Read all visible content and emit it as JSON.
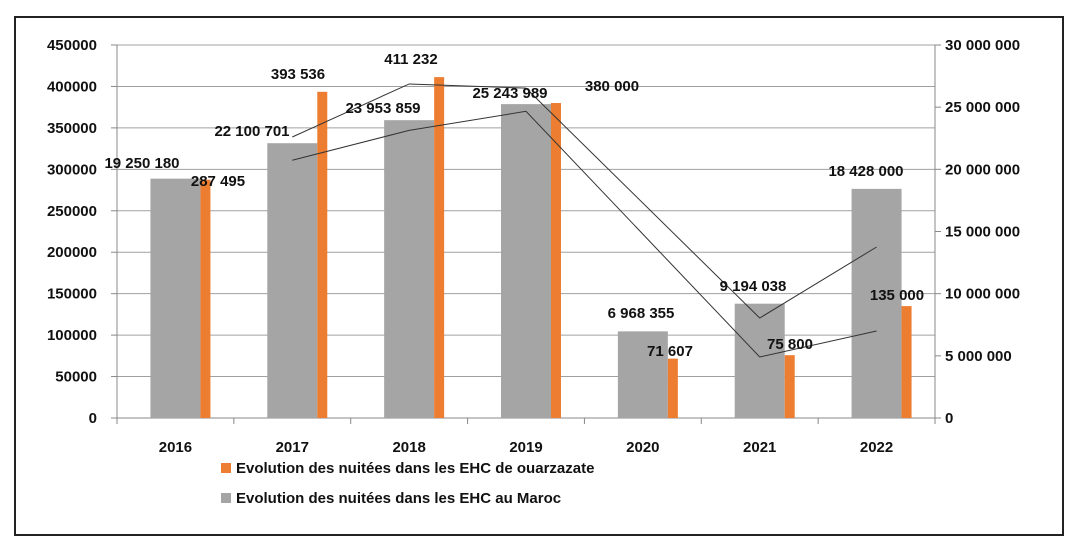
{
  "chart_data": {
    "type": "bar",
    "title": "",
    "xlabel": "",
    "ylabel": "",
    "categories": [
      "2016",
      "2017",
      "2018",
      "2019",
      "2020",
      "2021",
      "2022"
    ],
    "series": [
      {
        "name": "Evolution des nuitées dans les EHC au Maroc",
        "axis": "right",
        "color": "#a5a5a5",
        "values": [
          19250180,
          22100701,
          23953859,
          25243989,
          6968355,
          9194038,
          18428000
        ],
        "labels": [
          "19 250 180",
          "22 100 701",
          "23 953 859",
          "25 243 989",
          "6 968 355",
          "9 194 038",
          "18 428 000"
        ]
      },
      {
        "name": "Evolution des nuitées dans les EHC de ouarzazate",
        "axis": "left",
        "color": "#ed7d31",
        "values": [
          287495,
          393536,
          411232,
          380000,
          71607,
          75800,
          135000
        ],
        "labels": [
          "287 495",
          "393 536",
          "411 232",
          "380 000",
          "71 607",
          "75 800",
          "135 000"
        ]
      }
    ],
    "lines": [
      {
        "name": "line-a",
        "x": [
          "2017",
          "2018",
          "2019",
          "2021",
          "2022"
        ],
        "values": [
          339000,
          403000,
          398000,
          120600,
          206300
        ]
      },
      {
        "name": "line-b",
        "x": [
          "2017",
          "2018",
          "2019",
          "2021",
          "2022"
        ],
        "values": [
          311000,
          347000,
          370000,
          73600,
          105000
        ]
      }
    ],
    "left_axis": {
      "ylim": [
        0,
        450000
      ],
      "ticks": [
        "0",
        "50000",
        "100000",
        "150000",
        "200000",
        "250000",
        "300000",
        "350000",
        "400000",
        "450000"
      ]
    },
    "right_axis": {
      "ylim": [
        0,
        30000000
      ],
      "ticks": [
        "0",
        "5 000 000",
        "10 000 000",
        "15 000 000",
        "20 000 000",
        "25 000 000",
        "30 000 000"
      ]
    },
    "grid": true,
    "legend": {
      "placement": "bottom",
      "entries": [
        "Evolution des nuitées dans les EHC de ouarzazate",
        "Evolution des nuitées dans les EHC au Maroc"
      ]
    }
  }
}
